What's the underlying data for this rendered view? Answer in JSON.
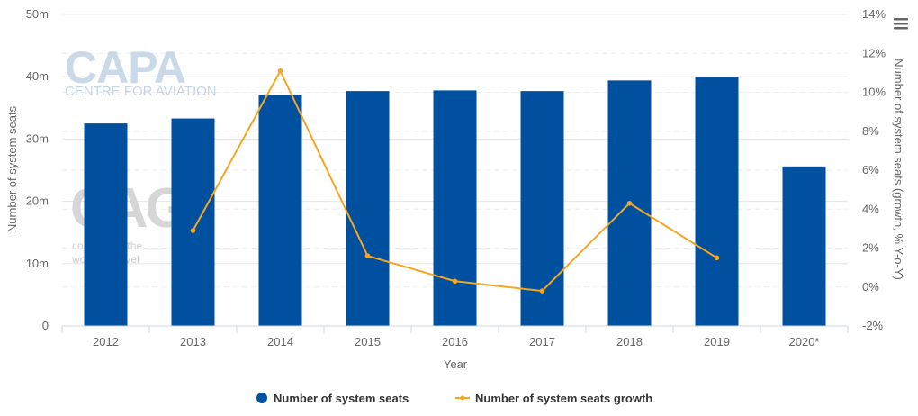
{
  "chart_data": {
    "type": "bar+line",
    "title": "",
    "xlabel": "Year",
    "ylabel": "Number of system seats",
    "y2label": "Number of system seats (growth, % Y-o-Y)",
    "categories": [
      "2012",
      "2013",
      "2014",
      "2015",
      "2016",
      "2017",
      "2018",
      "2019",
      "2020*"
    ],
    "ylim": [
      0,
      50
    ],
    "y_ticks": [
      0,
      10,
      20,
      30,
      40,
      50
    ],
    "y_tick_labels": [
      "0",
      "10m",
      "20m",
      "30m",
      "40m",
      "50m"
    ],
    "y2lim": [
      -2,
      14
    ],
    "y2_ticks": [
      -2,
      0,
      2,
      4,
      6,
      8,
      10,
      12,
      14
    ],
    "y2_tick_labels": [
      "-2%",
      "0%",
      "2%",
      "4%",
      "6%",
      "8%",
      "10%",
      "12%",
      "14%"
    ],
    "grid": true,
    "legend_position": "bottom-center",
    "series": [
      {
        "name": "Number of system seats",
        "type": "bar",
        "axis": "left",
        "color": "#0050a0",
        "values": [
          32.5,
          33.3,
          37.1,
          37.7,
          37.8,
          37.7,
          39.4,
          40.0,
          25.6
        ]
      },
      {
        "name": "Number of system seats growth",
        "type": "line",
        "axis": "right",
        "color": "#f5a623",
        "values": [
          null,
          2.9,
          11.1,
          1.6,
          0.3,
          -0.2,
          4.3,
          1.5,
          null
        ]
      }
    ]
  },
  "watermarks": {
    "capa": "CAPA",
    "capa_sub": "CENTRE FOR AVIATION",
    "cag": "CAG",
    "cag_sub_1": "connecting the",
    "cag_sub_2": "world to travel"
  },
  "menu_icon": "hamburger-menu-icon"
}
